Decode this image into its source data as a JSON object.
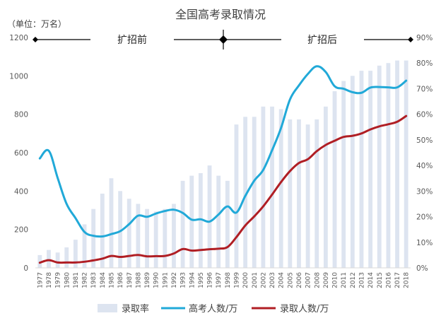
{
  "chart_data": {
    "type": "bar+line",
    "title": "全国高考录取情况",
    "unit_label": "（单位：万名）",
    "categories": [
      "1977",
      "1978",
      "1979",
      "1980",
      "1981",
      "1982",
      "1983",
      "1984",
      "1985",
      "1986",
      "1987",
      "1988",
      "1989",
      "1990",
      "1991",
      "1992",
      "1993",
      "1994",
      "1995",
      "1996",
      "1997",
      "1998",
      "1999",
      "2000",
      "2001",
      "2002",
      "2003",
      "2004",
      "2005",
      "2006",
      "2007",
      "2008",
      "2009",
      "2010",
      "2011",
      "2012",
      "2013",
      "2014",
      "2015",
      "2016",
      "2017",
      "2018"
    ],
    "y_left": {
      "ticks": [
        0,
        200,
        400,
        600,
        800,
        1000,
        1200
      ],
      "ylim": [
        0,
        1200
      ]
    },
    "y_right": {
      "ticks": [
        "0%",
        "10%",
        "20%",
        "30%",
        "40%",
        "50%",
        "60%",
        "70%",
        "80%",
        "90%"
      ],
      "ylim": [
        0,
        90
      ]
    },
    "series": [
      {
        "name": "录取率",
        "kind": "bar",
        "axis": "right",
        "color": "#dde4f0",
        "values": [
          5,
          7,
          6,
          8,
          11,
          17,
          23,
          29,
          35,
          30,
          27,
          25,
          23,
          22,
          23,
          25,
          34,
          36,
          37,
          40,
          36,
          34,
          56,
          59,
          59,
          63,
          63,
          62,
          58,
          58,
          56,
          58,
          63,
          69,
          73,
          75,
          77,
          77,
          79,
          80,
          81,
          81
        ]
      },
      {
        "name": "高考人数/万",
        "kind": "line",
        "axis": "left",
        "color": "#21a9d8",
        "values": [
          570,
          610,
          468,
          333,
          259,
          187,
          167,
          164,
          176,
          191,
          228,
          272,
          266,
          283,
          296,
          303,
          286,
          251,
          253,
          241,
          278,
          320,
          288,
          375,
          454,
          510,
          613,
          729,
          877,
          950,
          1010,
          1050,
          1020,
          946,
          933,
          915,
          912,
          939,
          942,
          940,
          940,
          975
        ]
      },
      {
        "name": "录取人数/万",
        "kind": "line",
        "axis": "left",
        "color": "#b01e24",
        "values": [
          27,
          40,
          28,
          28,
          28,
          32,
          39,
          48,
          62,
          57,
          62,
          67,
          60,
          61,
          62,
          75,
          98,
          90,
          93,
          97,
          100,
          108,
          160,
          221,
          268,
          320,
          382,
          447,
          504,
          546,
          566,
          608,
          640,
          662,
          682,
          688,
          700,
          721,
          737,
          748,
          761,
          791
        ]
      }
    ],
    "annotations": {
      "before": "扩招前",
      "after": "扩招后",
      "divider_year": "1998"
    },
    "legend_position": "bottom",
    "grid": false
  }
}
